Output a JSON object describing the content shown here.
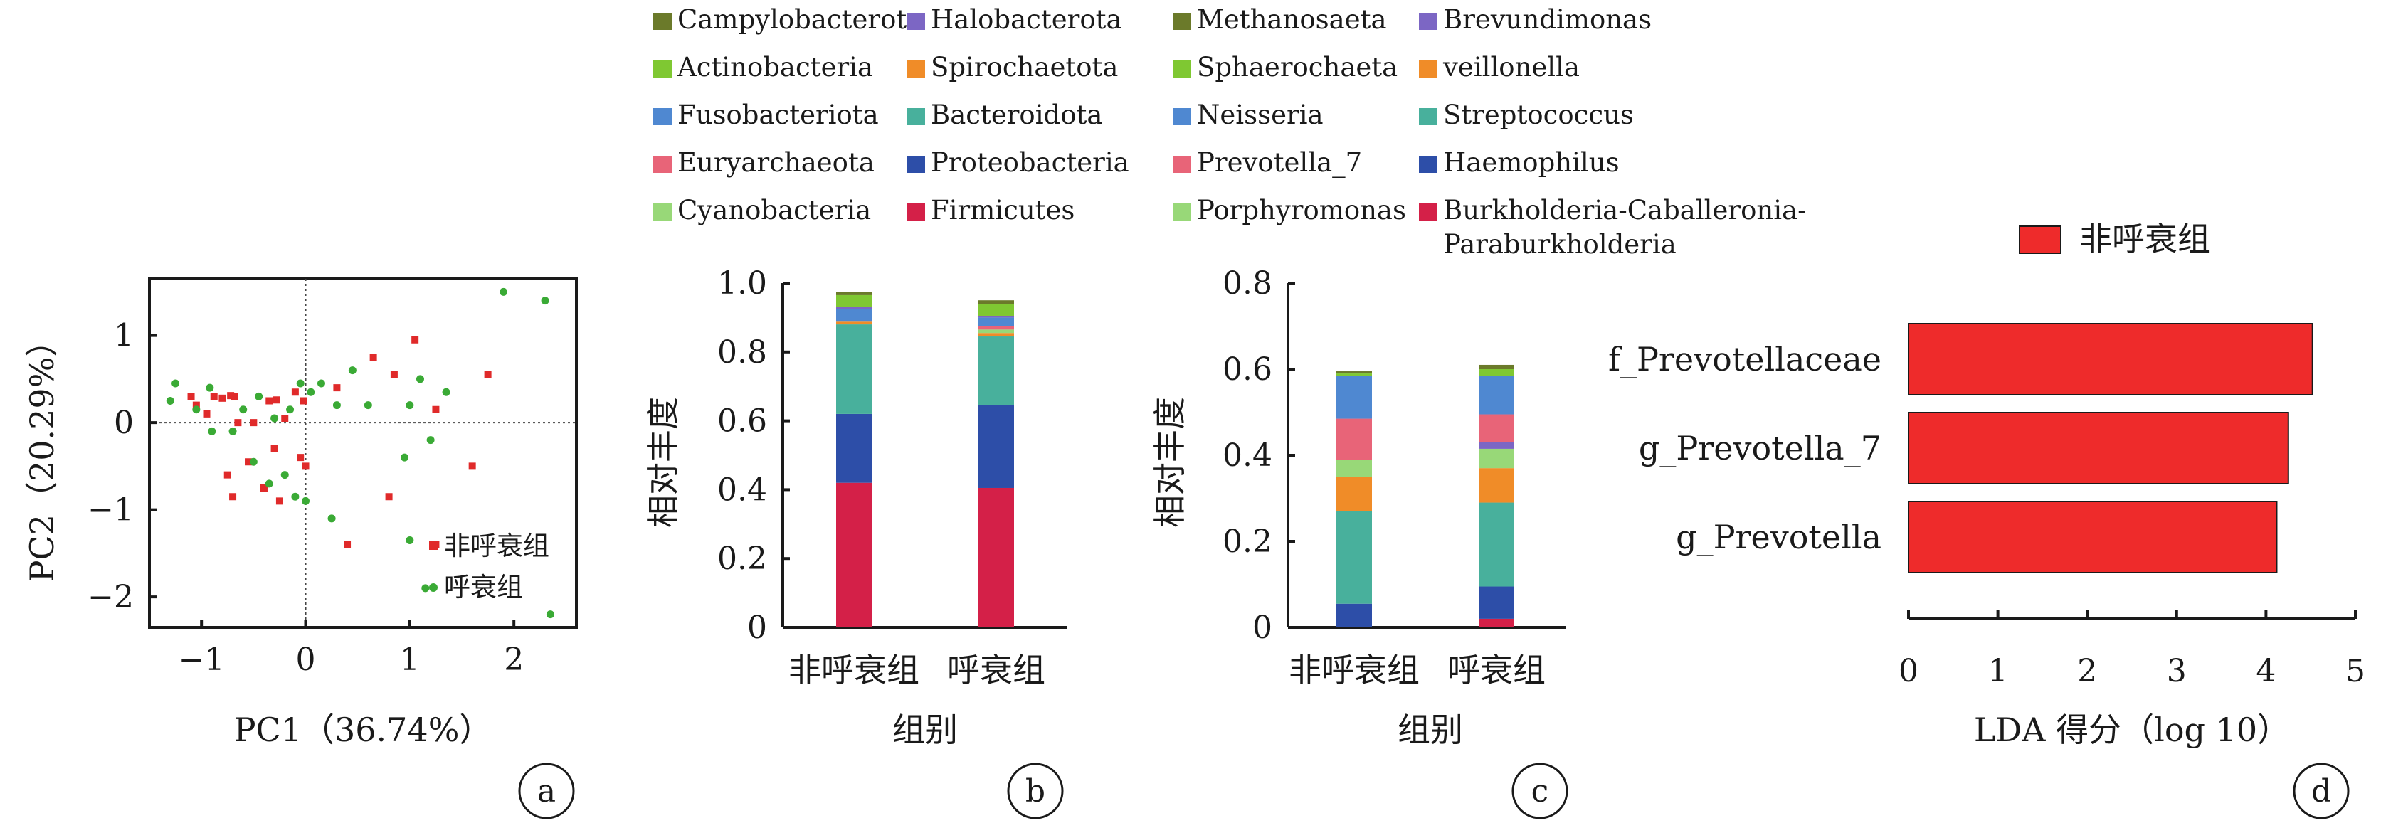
{
  "figure": {
    "panels": [
      {
        "label": "a"
      },
      {
        "label": "b"
      },
      {
        "label": "c"
      },
      {
        "label": "d"
      }
    ]
  },
  "legend_b": [
    {
      "name": "Campylobacterota",
      "color": "#6b7a2a"
    },
    {
      "name": "Halobacterota",
      "color": "#7c66c4"
    },
    {
      "name": "Actinobacteria",
      "color": "#7fc832"
    },
    {
      "name": "Spirochaetota",
      "color": "#f08c28"
    },
    {
      "name": "Fusobacteriota",
      "color": "#4f88d1"
    },
    {
      "name": "Bacteroidota",
      "color": "#48b09c"
    },
    {
      "name": "Euryarchaeota",
      "color": "#e86478"
    },
    {
      "name": "Proteobacteria",
      "color": "#2d4ea8"
    },
    {
      "name": "Cyanobacteria",
      "color": "#98d878"
    },
    {
      "name": "Firmicutes",
      "color": "#d42048"
    }
  ],
  "legend_c": [
    {
      "name": "Methanosaeta",
      "color": "#6b7a2a"
    },
    {
      "name": "Brevundimonas",
      "color": "#7c66c4"
    },
    {
      "name": "Sphaerochaeta",
      "color": "#7fc832"
    },
    {
      "name": "veillonella",
      "color": "#f08c28"
    },
    {
      "name": "Neisseria",
      "color": "#4f88d1"
    },
    {
      "name": "Streptococcus",
      "color": "#48b09c"
    },
    {
      "name": "Prevotella_7",
      "color": "#e86478"
    },
    {
      "name": "Haemophilus",
      "color": "#2d4ea8"
    },
    {
      "name": "Porphyromonas",
      "color": "#98d878"
    },
    {
      "name": "Burkholderia-Caballeronia-",
      "line2": "Paraburkholderia",
      "color": "#d42048"
    }
  ],
  "chart_data": [
    {
      "panel": "a",
      "type": "scatter",
      "xlabel": "PC1（36.74%）",
      "ylabel": "PC2（20.29%）",
      "xlim": [
        -1.5,
        2.6
      ],
      "ylim": [
        -2.35,
        1.65
      ],
      "xticks": [
        "−1",
        "0",
        "1",
        "2"
      ],
      "xtick_values": [
        -1,
        0,
        1,
        2
      ],
      "yticks": [
        "1",
        "0",
        "−1",
        "−2"
      ],
      "ytick_values": [
        1,
        0,
        -1,
        -2
      ],
      "reference_lines": [
        0,
        0
      ],
      "series": [
        {
          "name": "非呼衰组",
          "color": "#e02a2a",
          "marker": "square",
          "points": [
            [
              -1.1,
              0.3
            ],
            [
              -1.05,
              0.2
            ],
            [
              -0.95,
              0.1
            ],
            [
              -0.88,
              0.3
            ],
            [
              -0.8,
              0.28
            ],
            [
              -0.72,
              0.31
            ],
            [
              -0.68,
              0.3
            ],
            [
              -0.65,
              0.0
            ],
            [
              -0.5,
              0.0
            ],
            [
              -0.35,
              0.25
            ],
            [
              -0.28,
              0.26
            ],
            [
              -0.2,
              0.05
            ],
            [
              -0.1,
              0.35
            ],
            [
              -0.02,
              0.25
            ],
            [
              0.3,
              0.4
            ],
            [
              0.65,
              0.75
            ],
            [
              0.85,
              0.55
            ],
            [
              1.05,
              0.95
            ],
            [
              1.25,
              0.15
            ],
            [
              1.75,
              0.55
            ],
            [
              -0.7,
              -0.85
            ],
            [
              -0.75,
              -0.6
            ],
            [
              -0.55,
              -0.45
            ],
            [
              -0.4,
              -0.75
            ],
            [
              -0.3,
              -0.3
            ],
            [
              -0.25,
              -0.9
            ],
            [
              -0.05,
              -0.4
            ],
            [
              0.0,
              -0.5
            ],
            [
              0.4,
              -1.4
            ],
            [
              0.8,
              -0.85
            ],
            [
              1.6,
              -0.5
            ],
            [
              1.25,
              -1.4
            ]
          ]
        },
        {
          "name": "呼衰组",
          "color": "#3aaa35",
          "marker": "dot",
          "points": [
            [
              -1.25,
              0.45
            ],
            [
              -1.3,
              0.25
            ],
            [
              -1.05,
              0.15
            ],
            [
              -0.92,
              0.4
            ],
            [
              -0.6,
              0.15
            ],
            [
              -0.45,
              0.3
            ],
            [
              -0.3,
              0.05
            ],
            [
              -0.15,
              0.15
            ],
            [
              -0.05,
              0.45
            ],
            [
              0.05,
              0.35
            ],
            [
              0.15,
              0.45
            ],
            [
              0.3,
              0.2
            ],
            [
              0.45,
              0.6
            ],
            [
              0.6,
              0.2
            ],
            [
              1.0,
              0.2
            ],
            [
              1.1,
              0.5
            ],
            [
              1.35,
              0.35
            ],
            [
              1.9,
              1.5
            ],
            [
              2.3,
              1.4
            ],
            [
              -0.9,
              -0.1
            ],
            [
              -0.7,
              -0.1
            ],
            [
              -0.5,
              -0.45
            ],
            [
              -0.35,
              -0.7
            ],
            [
              -0.2,
              -0.6
            ],
            [
              -0.1,
              -0.85
            ],
            [
              0.0,
              -0.9
            ],
            [
              0.25,
              -1.1
            ],
            [
              0.95,
              -0.4
            ],
            [
              1.2,
              -0.2
            ],
            [
              1.15,
              -1.9
            ],
            [
              1.0,
              -1.35
            ],
            [
              2.35,
              -2.2
            ]
          ]
        }
      ]
    },
    {
      "panel": "b",
      "type": "bar",
      "stacked": true,
      "xlabel": "组别",
      "ylabel": "相对丰度",
      "ylim": [
        0,
        1.0
      ],
      "yticks": [
        "0",
        "0.2",
        "0.4",
        "0.6",
        "0.8",
        "1.0"
      ],
      "ytick_values": [
        0,
        0.2,
        0.4,
        0.6,
        0.8,
        1.0
      ],
      "categories": [
        "非呼衰组",
        "呼衰组"
      ],
      "series": [
        {
          "name": "Firmicutes",
          "values": [
            0.42,
            0.405
          ]
        },
        {
          "name": "Proteobacteria",
          "values": [
            0.2,
            0.24
          ]
        },
        {
          "name": "Bacteroidota",
          "values": [
            0.26,
            0.2
          ]
        },
        {
          "name": "Spirochaetota",
          "values": [
            0.01,
            0.01
          ]
        },
        {
          "name": "Cyanobacteria",
          "values": [
            0.0,
            0.01
          ]
        },
        {
          "name": "Euryarchaeota",
          "values": [
            0.0,
            0.01
          ]
        },
        {
          "name": "Fusobacteriota",
          "values": [
            0.035,
            0.025
          ]
        },
        {
          "name": "Halobacterota",
          "values": [
            0.005,
            0.005
          ]
        },
        {
          "name": "Actinobacteria",
          "values": [
            0.035,
            0.035
          ]
        },
        {
          "name": "Campylobacterota",
          "values": [
            0.01,
            0.01
          ]
        }
      ]
    },
    {
      "panel": "c",
      "type": "bar",
      "stacked": true,
      "xlabel": "组别",
      "ylabel": "相对丰度",
      "ylim": [
        0,
        0.8
      ],
      "yticks": [
        "0",
        "0.2",
        "0.4",
        "0.6",
        "0.8"
      ],
      "ytick_values": [
        0,
        0.2,
        0.4,
        0.6,
        0.8
      ],
      "categories": [
        "非呼衰组",
        "呼衰组"
      ],
      "series": [
        {
          "name": "Burkholderia-Caballeronia-Paraburkholderia",
          "values": [
            0.0,
            0.02
          ]
        },
        {
          "name": "Haemophilus",
          "values": [
            0.055,
            0.075
          ]
        },
        {
          "name": "Streptococcus",
          "values": [
            0.215,
            0.195
          ]
        },
        {
          "name": "veillonella",
          "values": [
            0.08,
            0.08
          ]
        },
        {
          "name": "Porphyromonas",
          "values": [
            0.04,
            0.045
          ]
        },
        {
          "name": "Brevundimonas",
          "values": [
            0.0,
            0.015
          ]
        },
        {
          "name": "Prevotella_7",
          "values": [
            0.095,
            0.065
          ]
        },
        {
          "name": "Neisseria",
          "values": [
            0.1,
            0.09
          ]
        },
        {
          "name": "Sphaerochaeta",
          "values": [
            0.005,
            0.015
          ]
        },
        {
          "name": "Methanosaeta",
          "values": [
            0.005,
            0.01
          ]
        }
      ]
    },
    {
      "panel": "d",
      "type": "bar",
      "orientation": "horizontal",
      "xlabel": "LDA 得分（log 10）",
      "legend": "非呼衰组",
      "color": "#ee2b2b",
      "xlim": [
        0,
        5
      ],
      "xticks": [
        "0",
        "1",
        "2",
        "3",
        "4",
        "5"
      ],
      "xtick_values": [
        0,
        1,
        2,
        3,
        4,
        5
      ],
      "categories": [
        "f_Prevotellaceae",
        "g_Prevotella_7",
        "g_Prevotella"
      ],
      "values": [
        4.52,
        4.25,
        4.12
      ]
    }
  ]
}
